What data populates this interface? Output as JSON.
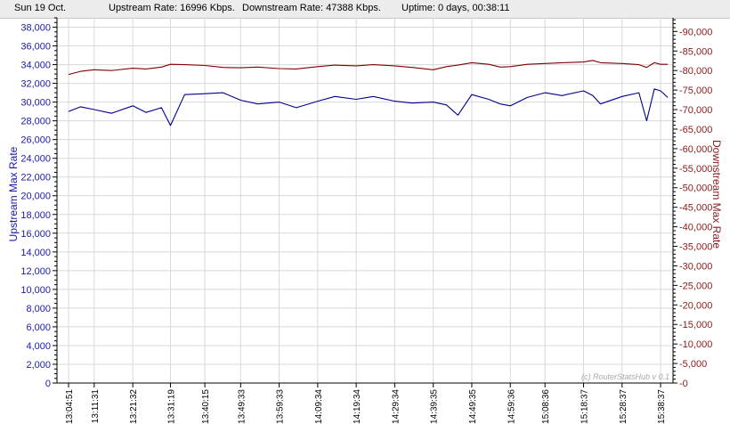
{
  "status": {
    "date": "Sun 19 Oct.",
    "upstream": "Upstream Rate: 16996 Kbps.",
    "downstream": "Downstream Rate: 47388 Kbps.",
    "uptime": "Uptime: 0 days, 00:38:11"
  },
  "watermark": "(c) RouterStatsHub v 0.1",
  "colors": {
    "upstream": "#00008b",
    "downstream": "#800000",
    "grid": "#d8d8d8"
  },
  "chart_data": {
    "type": "line",
    "ylabel": "Upstream Max Rate",
    "y2label": "Downstream Max Rate",
    "ylim": [
      0,
      39000
    ],
    "y2lim": [
      0,
      93500
    ],
    "yticks": [
      0,
      2000,
      4000,
      6000,
      8000,
      10000,
      12000,
      14000,
      16000,
      18000,
      20000,
      22000,
      24000,
      26000,
      28000,
      30000,
      32000,
      34000,
      36000,
      38000
    ],
    "yticklabels": [
      "0",
      "2,000",
      "4,000",
      "6,000",
      "8,000",
      "10,000",
      "12,000",
      "14,000",
      "16,000",
      "18,000",
      "20,000",
      "22,000",
      "24,000",
      "26,000",
      "28,000",
      "30,000",
      "32,000",
      "34,000",
      "36,000",
      "38,000"
    ],
    "y2ticks": [
      0,
      5000,
      10000,
      15000,
      20000,
      25000,
      30000,
      35000,
      40000,
      45000,
      50000,
      55000,
      60000,
      65000,
      70000,
      75000,
      80000,
      85000,
      90000
    ],
    "y2ticklabels": [
      "0",
      "5,000",
      "10,000",
      "15,000",
      "20,000",
      "25,000",
      "30,000",
      "35,000",
      "40,000",
      "45,000",
      "50,000",
      "55,000",
      "60,000",
      "65,000",
      "70,000",
      "75,000",
      "80,000",
      "85,000",
      "90,000"
    ],
    "xticklabels": [
      "13:04:51",
      "13:11:31",
      "13:21:32",
      "13:31:19",
      "13:40:15",
      "13:49:33",
      "13:59:33",
      "14:09:34",
      "14:19:34",
      "14:29:34",
      "14:39:35",
      "14:49:35",
      "14:59:36",
      "15:08:36",
      "15:18:37",
      "15:28:37",
      "15:38:37"
    ],
    "grid": true,
    "series": [
      {
        "name": "Upstream Max Rate",
        "axis": "left",
        "x": [
          "13:04:51",
          "13:08:00",
          "13:11:31",
          "13:16:00",
          "13:21:32",
          "13:25:00",
          "13:29:00",
          "13:31:19",
          "13:35:00",
          "13:40:15",
          "13:45:00",
          "13:49:33",
          "13:54:00",
          "13:59:33",
          "14:04:00",
          "14:09:34",
          "14:14:00",
          "14:19:34",
          "14:24:00",
          "14:29:34",
          "14:34:00",
          "14:39:35",
          "14:43:00",
          "14:46:00",
          "14:49:35",
          "14:54:00",
          "14:57:00",
          "14:59:36",
          "15:04:00",
          "15:08:36",
          "15:13:00",
          "15:18:37",
          "15:21:00",
          "15:23:00",
          "15:28:37",
          "15:33:00",
          "15:35:00",
          "15:37:00",
          "15:38:37",
          "15:40:30"
        ],
        "values": [
          29000,
          29500,
          29200,
          28800,
          29600,
          28900,
          29400,
          27500,
          30800,
          30900,
          31000,
          30200,
          29800,
          30000,
          29400,
          30100,
          30600,
          30300,
          30600,
          30100,
          29900,
          30000,
          29700,
          28600,
          30800,
          30300,
          29800,
          29600,
          30500,
          31000,
          30700,
          31200,
          30700,
          29800,
          30600,
          31000,
          28000,
          31400,
          31200,
          30500
        ]
      },
      {
        "name": "Downstream Max Rate",
        "axis": "right",
        "x": [
          "13:04:51",
          "13:08:00",
          "13:11:31",
          "13:16:00",
          "13:21:32",
          "13:25:00",
          "13:29:00",
          "13:31:19",
          "13:35:00",
          "13:40:15",
          "13:45:00",
          "13:49:33",
          "13:54:00",
          "13:59:33",
          "14:04:00",
          "14:09:34",
          "14:14:00",
          "14:19:34",
          "14:24:00",
          "14:29:34",
          "14:34:00",
          "14:39:35",
          "14:43:00",
          "14:46:00",
          "14:49:35",
          "14:54:00",
          "14:57:00",
          "14:59:36",
          "15:04:00",
          "15:08:36",
          "15:13:00",
          "15:18:37",
          "15:21:00",
          "15:23:00",
          "15:28:37",
          "15:33:00",
          "15:35:00",
          "15:37:00",
          "15:38:37",
          "15:40:30"
        ],
        "values": [
          79000,
          79800,
          80200,
          80000,
          80600,
          80400,
          80900,
          81600,
          81500,
          81300,
          80800,
          80700,
          80900,
          80500,
          80400,
          81000,
          81400,
          81200,
          81500,
          81200,
          80800,
          80200,
          81000,
          81400,
          82000,
          81600,
          80900,
          81000,
          81600,
          81800,
          82000,
          82200,
          82600,
          82000,
          81800,
          81500,
          80800,
          82000,
          81600,
          81600
        ]
      }
    ]
  }
}
